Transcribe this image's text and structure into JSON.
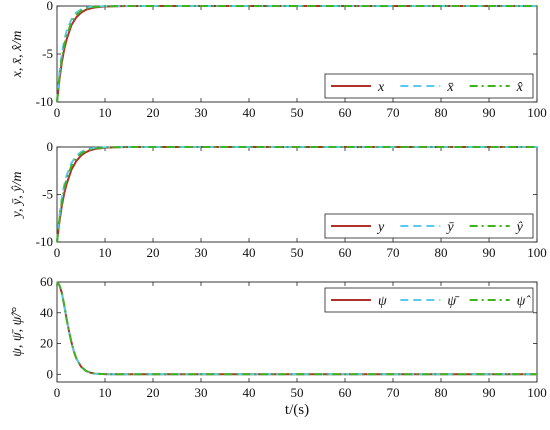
{
  "chart_data": [
    {
      "type": "line",
      "ylabel": "x, x̄, x̂/m",
      "xlim": [
        0,
        100
      ],
      "ylim": [
        -10,
        0
      ],
      "xticks": [
        0,
        10,
        20,
        30,
        40,
        50,
        60,
        70,
        80,
        90,
        100
      ],
      "yticks": [
        -10,
        -5,
        0
      ],
      "legend_position": "lower-right",
      "grid": false,
      "series": [
        {
          "name": "x",
          "color": "#b0312a",
          "dash": "solid",
          "x": [
            0,
            0.5,
            1,
            1.5,
            2,
            3,
            4,
            5,
            6,
            7,
            8,
            10,
            12,
            15,
            20,
            30,
            50,
            100
          ],
          "y": [
            -10,
            -7.7,
            -5.9,
            -4.5,
            -3.5,
            -2.0,
            -1.2,
            -0.7,
            -0.4,
            -0.25,
            -0.15,
            -0.05,
            -0.02,
            0,
            0,
            0,
            0,
            0
          ]
        },
        {
          "name": "x̄",
          "color": "#5bc8ee",
          "dash": "dashed",
          "x": [
            0,
            0.5,
            1,
            1.5,
            2,
            3,
            4,
            5,
            6,
            7,
            8,
            10,
            12,
            15,
            20,
            30,
            50,
            100
          ],
          "y": [
            -10,
            -7.0,
            -5.0,
            -3.6,
            -2.6,
            -1.4,
            -0.7,
            -0.35,
            -0.18,
            -0.09,
            -0.05,
            -0.01,
            0,
            0,
            0,
            0,
            0,
            0
          ]
        },
        {
          "name": "x̂",
          "color": "#3fb31f",
          "dash": "dashdot",
          "x": [
            0,
            0.5,
            1,
            1.5,
            2,
            3,
            4,
            5,
            6,
            7,
            8,
            10,
            12,
            15,
            20,
            30,
            50,
            100
          ],
          "y": [
            -10,
            -7.4,
            -5.5,
            -4.1,
            -3.1,
            -1.7,
            -0.95,
            -0.5,
            -0.28,
            -0.15,
            -0.09,
            -0.03,
            -0.01,
            0,
            0,
            0,
            0,
            0
          ]
        }
      ]
    },
    {
      "type": "line",
      "ylabel": "y, ȳ, ŷ/m",
      "xlim": [
        0,
        100
      ],
      "ylim": [
        -10,
        0
      ],
      "xticks": [
        0,
        10,
        20,
        30,
        40,
        50,
        60,
        70,
        80,
        90,
        100
      ],
      "yticks": [
        -10,
        -5,
        0
      ],
      "legend_position": "lower-right",
      "grid": false,
      "series": [
        {
          "name": "y",
          "color": "#b0312a",
          "dash": "solid",
          "x": [
            0,
            0.5,
            1,
            1.5,
            2,
            3,
            4,
            5,
            6,
            7,
            8,
            10,
            12,
            15,
            20,
            30,
            50,
            100
          ],
          "y": [
            -10,
            -7.9,
            -6.2,
            -4.9,
            -3.9,
            -2.4,
            -1.5,
            -0.9,
            -0.55,
            -0.33,
            -0.2,
            -0.08,
            -0.03,
            0,
            0,
            0,
            0,
            0
          ]
        },
        {
          "name": "ȳ",
          "color": "#5bc8ee",
          "dash": "dashed",
          "x": [
            0,
            0.5,
            1,
            1.5,
            2,
            3,
            4,
            5,
            6,
            7,
            8,
            10,
            12,
            15,
            20,
            30,
            50,
            100
          ],
          "y": [
            -10,
            -7.3,
            -5.4,
            -4.0,
            -3.0,
            -1.7,
            -0.95,
            -0.52,
            -0.29,
            -0.16,
            -0.09,
            -0.03,
            -0.01,
            0,
            0,
            0,
            0,
            0
          ]
        },
        {
          "name": "ŷ",
          "color": "#3fb31f",
          "dash": "dashdot",
          "x": [
            0,
            0.5,
            1,
            1.5,
            2,
            3,
            4,
            5,
            6,
            7,
            8,
            10,
            12,
            15,
            20,
            30,
            50,
            100
          ],
          "y": [
            -10,
            -7.6,
            -5.8,
            -4.4,
            -3.4,
            -2.0,
            -1.2,
            -0.7,
            -0.4,
            -0.24,
            -0.14,
            -0.05,
            -0.02,
            0,
            0,
            0,
            0,
            0
          ]
        }
      ]
    },
    {
      "type": "line",
      "ylabel": "ψ, ψ̄, ψ̂/°",
      "xlabel": "t/(s)",
      "xlim": [
        0,
        100
      ],
      "ylim": [
        -5,
        60
      ],
      "xticks": [
        0,
        10,
        20,
        30,
        40,
        50,
        60,
        70,
        80,
        90,
        100
      ],
      "yticks": [
        0,
        20,
        40,
        60
      ],
      "legend_position": "top-right",
      "grid": false,
      "series": [
        {
          "name": "ψ",
          "color": "#b0312a",
          "dash": "solid",
          "x": [
            0,
            0.5,
            1,
            1.5,
            2,
            2.5,
            3,
            3.5,
            4,
            5,
            6,
            7,
            8,
            10,
            12,
            15,
            20,
            30,
            50,
            100
          ],
          "y": [
            60,
            58,
            53,
            45,
            36,
            28,
            21,
            15,
            10.5,
            5,
            2.3,
            1,
            0.4,
            0.1,
            0,
            0,
            0,
            0,
            0,
            0
          ]
        },
        {
          "name": "ψ̄",
          "color": "#5bc8ee",
          "dash": "dashed",
          "x": [
            0,
            0.5,
            1,
            1.5,
            2,
            2.5,
            3,
            3.5,
            4,
            5,
            6,
            7,
            8,
            10,
            12,
            15,
            20,
            30,
            50,
            100
          ],
          "y": [
            60,
            58,
            53,
            45,
            36,
            28,
            21,
            15,
            10.5,
            5,
            2.3,
            1,
            0.4,
            0.1,
            0,
            0,
            0,
            0,
            0,
            0
          ]
        },
        {
          "name": "ψ̂",
          "color": "#3fb31f",
          "dash": "dashdot",
          "x": [
            0,
            0.5,
            1,
            1.5,
            2,
            2.5,
            3,
            3.5,
            4,
            5,
            6,
            7,
            8,
            10,
            12,
            15,
            20,
            30,
            50,
            100
          ],
          "y": [
            60,
            58,
            53,
            45,
            36,
            28,
            21,
            15,
            10.5,
            5,
            2.3,
            1,
            0.4,
            0.1,
            0,
            0,
            0,
            0,
            0,
            0
          ]
        }
      ]
    }
  ]
}
